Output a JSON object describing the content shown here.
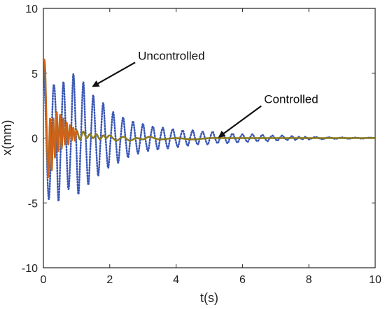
{
  "chart_data": {
    "type": "line",
    "title": "",
    "xlabel": "t(s)",
    "ylabel": "x(mm)",
    "xlim": [
      0,
      10
    ],
    "ylim": [
      -10,
      10
    ],
    "xticks": [
      "0",
      "2",
      "4",
      "6",
      "8",
      "10"
    ],
    "yticks": [
      "10",
      "5",
      "0",
      "-5",
      "-10"
    ],
    "grid": false,
    "series": [
      {
        "name": "Uncontrolled",
        "style": "dotted",
        "color": "#3a57b5",
        "description_model": "damped oscillation",
        "t": [
          0.0,
          0.05,
          0.15,
          0.22,
          0.3,
          0.37,
          0.45,
          0.52,
          0.6,
          0.67,
          0.75,
          0.82,
          0.9,
          0.97,
          1.05,
          1.12,
          1.2,
          1.27,
          1.35,
          1.42,
          1.5,
          1.57,
          1.65,
          1.72,
          1.8,
          1.87,
          1.95,
          2.02,
          2.1,
          2.17,
          2.25,
          2.32,
          2.4,
          2.47,
          2.55,
          2.62,
          2.7,
          2.77,
          2.85,
          2.92,
          3.0,
          3.07,
          3.15,
          3.22,
          3.3,
          3.37,
          3.45,
          3.52,
          3.6,
          3.67,
          3.75,
          3.82,
          3.9,
          3.97,
          4.05,
          4.12,
          4.2,
          4.27,
          4.35,
          4.42,
          4.5,
          4.57,
          4.65,
          4.72,
          4.8,
          4.87,
          4.95,
          5.02,
          5.1,
          5.17,
          5.25,
          5.32,
          5.4,
          5.47,
          5.55,
          5.62,
          5.7,
          5.77,
          5.85,
          5.92,
          6.0,
          6.07,
          6.15,
          6.22,
          6.3,
          6.37,
          6.45,
          6.52,
          6.6,
          6.67,
          6.75,
          6.82,
          6.9,
          6.97,
          7.05,
          7.12,
          7.2,
          7.27,
          7.35,
          7.42,
          7.5,
          7.6,
          7.7,
          7.8,
          7.9,
          8.0,
          8.2,
          8.4,
          8.6,
          8.8,
          9.0,
          9.2,
          9.4,
          9.6,
          9.8,
          10.0
        ],
        "x": [
          6.0,
          3.2,
          -4.5,
          -2.0,
          3.9,
          2.2,
          -4.8,
          -1.0,
          4.3,
          1.0,
          -3.9,
          -1.0,
          4.9,
          1.2,
          -4.3,
          -0.8,
          4.3,
          0.5,
          -3.6,
          -0.6,
          3.3,
          0.3,
          -2.9,
          -0.3,
          2.7,
          0.2,
          -2.3,
          -0.3,
          2.0,
          0.2,
          -1.9,
          -0.2,
          1.6,
          0.1,
          -1.5,
          -0.1,
          1.3,
          0.1,
          -1.2,
          -0.1,
          1.1,
          0.0,
          -1.0,
          0.0,
          0.9,
          0.0,
          -0.9,
          0.0,
          0.8,
          0.0,
          -0.8,
          0.0,
          0.7,
          0.0,
          -0.7,
          0.0,
          0.6,
          0.0,
          -0.6,
          0.0,
          0.6,
          0.0,
          -0.5,
          0.0,
          0.5,
          0.0,
          -0.5,
          0.0,
          0.5,
          0.0,
          -0.4,
          0.0,
          0.4,
          0.0,
          -0.4,
          0.0,
          0.35,
          0.0,
          -0.35,
          0.0,
          0.3,
          0.0,
          -0.3,
          0.0,
          0.3,
          0.0,
          -0.25,
          0.0,
          0.25,
          0.0,
          -0.25,
          0.0,
          0.2,
          0.0,
          -0.2,
          0.0,
          0.2,
          0.0,
          -0.15,
          0.0,
          0.15,
          -0.15,
          0.1,
          -0.1,
          0.1,
          -0.1,
          0.08,
          -0.08,
          0.06,
          -0.06,
          0.05,
          -0.05,
          0.04,
          -0.04,
          0.03,
          0.0
        ]
      },
      {
        "name": "Controlled",
        "style": "solid",
        "color": "#8b7a1a",
        "t": [
          0.0,
          0.05,
          0.1,
          0.15,
          0.2,
          0.25,
          0.3,
          0.35,
          0.4,
          0.45,
          0.5,
          0.55,
          0.6,
          0.65,
          0.7,
          0.75,
          0.8,
          0.85,
          0.9,
          0.95,
          1.0,
          1.1,
          1.2,
          1.3,
          1.4,
          1.5,
          1.6,
          1.7,
          1.8,
          1.9,
          2.0,
          2.2,
          2.4,
          2.6,
          2.8,
          3.0,
          3.2,
          3.5,
          4.0,
          4.5,
          5.0,
          5.5,
          6.0,
          7.0,
          8.0,
          9.0,
          10.0
        ],
        "x": [
          6.0,
          5.5,
          0.5,
          -3.0,
          1.5,
          -2.5,
          1.5,
          -1.5,
          2.0,
          -1.0,
          1.8,
          -0.8,
          1.5,
          -0.5,
          1.2,
          -0.5,
          1.0,
          -0.2,
          0.8,
          -0.2,
          0.6,
          -0.1,
          0.5,
          0.0,
          0.3,
          0.0,
          0.3,
          -0.1,
          0.2,
          0.0,
          0.2,
          -0.2,
          0.1,
          -0.2,
          0.0,
          -0.1,
          0.1,
          -0.1,
          0.0,
          -0.1,
          0.0,
          0.0,
          0.0,
          0.0,
          0.0,
          0.0,
          0.0
        ]
      }
    ],
    "annotations": [
      {
        "text": "Uncontrolled",
        "points_to": {
          "t": 1.5,
          "x": 4.0
        }
      },
      {
        "text": "Controlled",
        "points_to": {
          "t": 5.3,
          "x": 0.1
        }
      }
    ],
    "colors": {
      "uncontrolled": "#3a57b5",
      "controlled": "#8b7a1a",
      "controlled_accent": "#d0611a",
      "axis": "#222222"
    }
  }
}
